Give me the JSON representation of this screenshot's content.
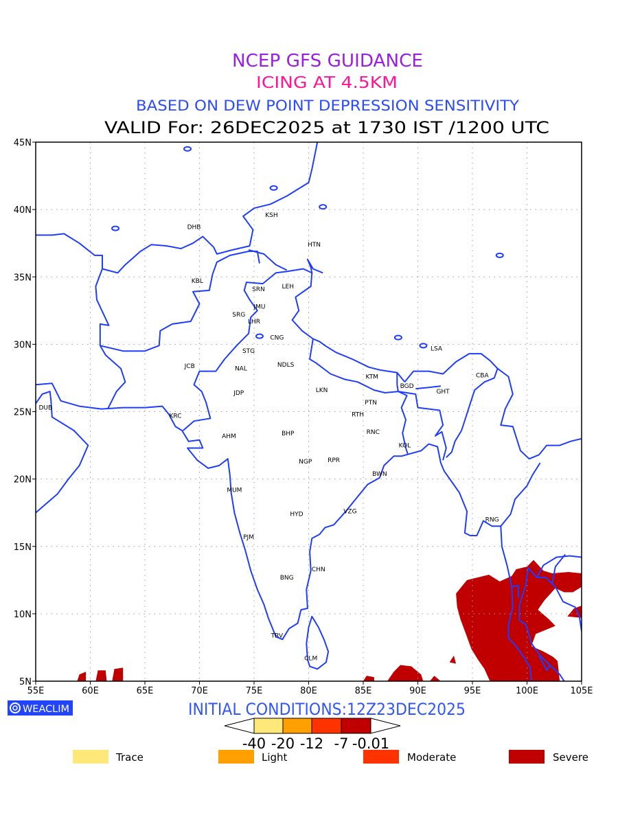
{
  "titles": {
    "line1": "NCEP GFS GUIDANCE",
    "line2": "ICING AT 4.5KM",
    "line3": "BASED ON DEW POINT DEPRESSION SENSITIVITY",
    "line4": "VALID For: 26DEC2025 at 1730 IST /1200 UTC"
  },
  "colors": {
    "line1": "#9a1ee6",
    "line2": "#ff1493",
    "line3": "#2a4bff",
    "map_lines": "#1f3dff",
    "trace": "#ffe87a",
    "light": "#ffa000",
    "moderate": "#ff3300",
    "severe": "#c00000"
  },
  "map": {
    "lon_range": [
      55,
      105
    ],
    "lat_range": [
      5,
      45
    ],
    "lon_ticks": [
      "55E",
      "60E",
      "65E",
      "70E",
      "75E",
      "80E",
      "85E",
      "90E",
      "95E",
      "100E",
      "105E"
    ],
    "lat_ticks": [
      "45N",
      "40N",
      "35N",
      "30N",
      "25N",
      "20N",
      "15N",
      "10N",
      "5N"
    ],
    "stations": [
      {
        "code": "KSH",
        "lon": 76.6,
        "lat": 39.6
      },
      {
        "code": "DHB",
        "lon": 69.5,
        "lat": 38.7
      },
      {
        "code": "HTN",
        "lon": 80.5,
        "lat": 37.4
      },
      {
        "code": "KBL",
        "lon": 69.8,
        "lat": 34.7
      },
      {
        "code": "SRN",
        "lon": 75.4,
        "lat": 34.1
      },
      {
        "code": "LEH",
        "lon": 78.1,
        "lat": 34.3
      },
      {
        "code": "JMU",
        "lon": 75.5,
        "lat": 32.8
      },
      {
        "code": "SRG",
        "lon": 73.6,
        "lat": 32.2
      },
      {
        "code": "LHR",
        "lon": 75.0,
        "lat": 31.7
      },
      {
        "code": "CNG",
        "lon": 77.1,
        "lat": 30.5
      },
      {
        "code": "STG",
        "lon": 74.5,
        "lat": 29.5
      },
      {
        "code": "JCB",
        "lon": 69.1,
        "lat": 28.4
      },
      {
        "code": "NAL",
        "lon": 73.8,
        "lat": 28.2
      },
      {
        "code": "NDLS",
        "lon": 77.9,
        "lat": 28.5
      },
      {
        "code": "LSA",
        "lon": 91.7,
        "lat": 29.7
      },
      {
        "code": "CBA",
        "lon": 95.9,
        "lat": 27.7
      },
      {
        "code": "KTM",
        "lon": 85.8,
        "lat": 27.6
      },
      {
        "code": "BGD",
        "lon": 89.0,
        "lat": 26.9
      },
      {
        "code": "GHT",
        "lon": 92.3,
        "lat": 26.5
      },
      {
        "code": "JDP",
        "lon": 73.6,
        "lat": 26.4
      },
      {
        "code": "LKN",
        "lon": 81.2,
        "lat": 26.6
      },
      {
        "code": "PTN",
        "lon": 85.7,
        "lat": 25.7
      },
      {
        "code": "DUB",
        "lon": 55.9,
        "lat": 25.3
      },
      {
        "code": "RTH",
        "lon": 84.5,
        "lat": 24.8
      },
      {
        "code": "KRC",
        "lon": 67.8,
        "lat": 24.7
      },
      {
        "code": "AHM",
        "lon": 72.7,
        "lat": 23.2
      },
      {
        "code": "BHP",
        "lon": 78.1,
        "lat": 23.4
      },
      {
        "code": "RNC",
        "lon": 85.9,
        "lat": 23.5
      },
      {
        "code": "KOL",
        "lon": 88.8,
        "lat": 22.5
      },
      {
        "code": "NGP",
        "lon": 79.7,
        "lat": 21.3
      },
      {
        "code": "RPR",
        "lon": 82.3,
        "lat": 21.4
      },
      {
        "code": "BWN",
        "lon": 86.5,
        "lat": 20.4
      },
      {
        "code": "MUM",
        "lon": 73.2,
        "lat": 19.2
      },
      {
        "code": "HYD",
        "lon": 78.9,
        "lat": 17.4
      },
      {
        "code": "VZG",
        "lon": 83.8,
        "lat": 17.6
      },
      {
        "code": "RNG",
        "lon": 96.8,
        "lat": 17.0
      },
      {
        "code": "PJM",
        "lon": 74.5,
        "lat": 15.7
      },
      {
        "code": "CHN",
        "lon": 80.9,
        "lat": 13.3
      },
      {
        "code": "BNG",
        "lon": 78.0,
        "lat": 12.7
      },
      {
        "code": "TRV",
        "lon": 77.1,
        "lat": 8.4
      },
      {
        "code": "CLM",
        "lon": 80.2,
        "lat": 6.7
      }
    ]
  },
  "footer": {
    "logo_text": "WEACLIM",
    "initial_conditions": "INITIAL CONDITIONS:12Z23DEC2025",
    "colorbar_labels": [
      "-40",
      "-20",
      "-12",
      "-7",
      "-0.01"
    ],
    "categories": [
      "Trace",
      "Light",
      "Moderate",
      "Severe"
    ]
  }
}
